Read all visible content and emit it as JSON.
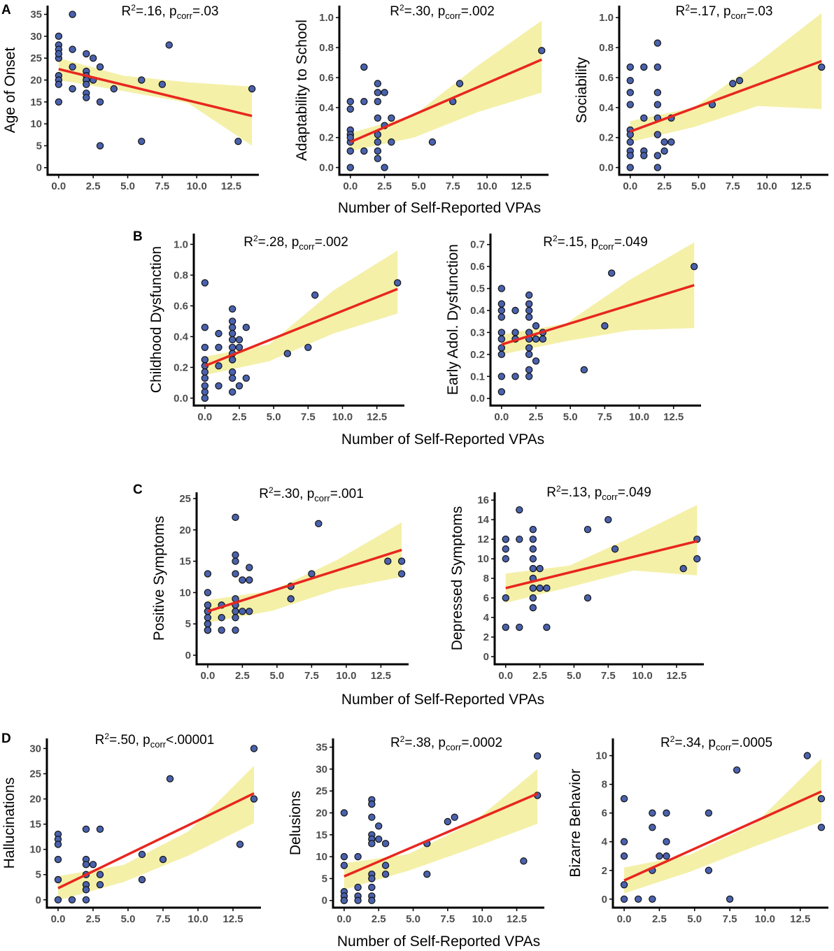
{
  "figure": {
    "shared_xlabel": "Number of Self-Reported VPAs",
    "panel_labels": [
      "A",
      "B",
      "C",
      "D"
    ]
  },
  "colors": {
    "point_fill": "#4a62ad",
    "point_stroke": "#111111",
    "fit_line": "#e8261f",
    "ci_band": "#f4f0a8",
    "axis": "#000000"
  },
  "chart_data": [
    {
      "panel": "A",
      "type": "scatter",
      "ylabel": "Age of Onset",
      "annotation": {
        "r2": "=.16, p",
        "p": "=.03"
      },
      "xlim": [
        -0.5,
        14.5
      ],
      "ylim": [
        -1,
        37
      ],
      "xticks": [
        0,
        2.5,
        5,
        7.5,
        10,
        12.5
      ],
      "yticks": [
        0,
        5,
        10,
        15,
        20,
        25,
        30,
        35
      ],
      "x": [
        0,
        0,
        0,
        0,
        0,
        0,
        0,
        0,
        0,
        1,
        1,
        1,
        1,
        2,
        2,
        2,
        2,
        2,
        2,
        2,
        2.5,
        2.5,
        3,
        3,
        3,
        4,
        6,
        6,
        7.5,
        8,
        13,
        14
      ],
      "y": [
        30,
        28,
        27,
        25,
        21,
        20,
        19,
        15,
        26,
        35,
        27,
        23,
        18,
        26,
        22,
        21,
        20,
        19,
        17,
        16,
        25,
        20,
        23,
        15,
        5,
        18,
        20,
        6,
        19,
        28,
        6,
        18
      ],
      "fit": {
        "x0": 0,
        "y0": 22.5,
        "x1": 14,
        "y1": 11.8
      },
      "ci": {
        "lo": [
          20.0,
          17.5,
          14.8,
          5.0
        ],
        "hi": [
          25.0,
          21.0,
          19.5,
          18.5
        ]
      }
    },
    {
      "panel": "A",
      "type": "scatter",
      "ylabel": "Adaptability to School",
      "annotation": {
        "r2": "=.30, p",
        "p": "=.002"
      },
      "xlim": [
        -0.5,
        14.5
      ],
      "ylim": [
        -0.03,
        1.08
      ],
      "xticks": [
        0,
        2.5,
        5,
        7.5,
        10,
        12.5
      ],
      "yticks": [
        0,
        0.2,
        0.4,
        0.6,
        0.8,
        1.0
      ],
      "x": [
        0,
        0,
        0,
        0,
        0,
        0,
        0,
        0,
        1,
        1,
        1,
        2,
        2,
        2,
        2,
        2,
        2,
        2,
        2,
        2.5,
        2.5,
        2.5,
        3,
        3,
        6,
        7.5,
        8,
        14
      ],
      "y": [
        0.44,
        0.39,
        0.25,
        0.22,
        0.17,
        0.11,
        0,
        0.2,
        0.67,
        0.44,
        0.11,
        0.56,
        0.5,
        0.44,
        0.33,
        0.22,
        0.17,
        0.11,
        0.06,
        0.5,
        0.28,
        0,
        0.33,
        0.17,
        0.17,
        0.44,
        0.56,
        0.78
      ],
      "fit": {
        "x0": 0,
        "y0": 0.17,
        "x1": 14,
        "y1": 0.72
      },
      "ci": {
        "lo": [
          0.11,
          0.2,
          0.37,
          0.5
        ],
        "hi": [
          0.23,
          0.35,
          0.68,
          0.98
        ]
      }
    },
    {
      "panel": "A",
      "type": "scatter",
      "ylabel": "Sociability",
      "annotation": {
        "r2": "=.17, p",
        "p": "=.03"
      },
      "xlim": [
        -0.5,
        14.5
      ],
      "ylim": [
        -0.03,
        1.08
      ],
      "xticks": [
        0,
        2.5,
        5,
        7.5,
        10,
        12.5
      ],
      "yticks": [
        0,
        0.2,
        0.4,
        0.6,
        0.8,
        1.0
      ],
      "x": [
        0,
        0,
        0,
        0,
        0,
        0,
        0,
        0,
        0,
        0,
        1,
        1,
        1,
        1,
        2,
        2,
        2,
        2,
        2,
        2,
        2,
        2,
        2.5,
        2.5,
        3,
        3,
        6,
        7.5,
        8,
        14
      ],
      "y": [
        0.67,
        0.58,
        0.5,
        0.42,
        0.25,
        0.22,
        0.17,
        0.11,
        0.08,
        0,
        0.67,
        0.33,
        0.11,
        0.08,
        0.83,
        0.67,
        0.5,
        0.42,
        0.33,
        0.22,
        0.08,
        0,
        0.17,
        0.11,
        0.33,
        0.17,
        0.42,
        0.56,
        0.58,
        0.67
      ],
      "fit": {
        "x0": 0,
        "y0": 0.24,
        "x1": 14,
        "y1": 0.71
      },
      "ci": {
        "lo": [
          0.17,
          0.27,
          0.41,
          0.39
        ],
        "hi": [
          0.31,
          0.4,
          0.7,
          1.03
        ]
      }
    },
    {
      "panel": "B",
      "type": "scatter",
      "ylabel": "Childhood Dysfunction",
      "annotation": {
        "r2": "=.28, p",
        "p": "=.002"
      },
      "xlim": [
        -0.5,
        14.5
      ],
      "ylim": [
        -0.03,
        1.07
      ],
      "xticks": [
        0,
        2.5,
        5,
        7.5,
        10,
        12.5
      ],
      "yticks": [
        0,
        0.2,
        0.4,
        0.6,
        0.8,
        1.0
      ],
      "x": [
        0,
        0,
        0,
        0,
        0,
        0,
        0,
        0,
        0,
        0,
        1,
        1,
        1,
        1,
        2,
        2,
        2,
        2,
        2,
        2,
        2,
        2,
        2,
        2,
        2,
        2.5,
        2.5,
        2.5,
        3,
        3,
        6,
        7.5,
        8,
        14
      ],
      "y": [
        0.75,
        0.46,
        0.33,
        0.25,
        0.21,
        0.17,
        0.13,
        0.08,
        0.04,
        0.0,
        0.42,
        0.33,
        0.21,
        0.08,
        0.58,
        0.5,
        0.46,
        0.42,
        0.38,
        0.33,
        0.29,
        0.25,
        0.17,
        0.13,
        0.04,
        0.38,
        0.33,
        0.08,
        0.46,
        0.13,
        0.29,
        0.33,
        0.67,
        0.75
      ],
      "fit": {
        "x0": 0,
        "y0": 0.21,
        "x1": 14,
        "y1": 0.71
      },
      "ci": {
        "lo": [
          0.15,
          0.24,
          0.42,
          0.55
        ],
        "hi": [
          0.27,
          0.35,
          0.7,
          0.96
        ]
      }
    },
    {
      "panel": "B",
      "type": "scatter",
      "ylabel": "Early Adol. Dysfunction",
      "annotation": {
        "r2": "=.15, p",
        "p": "=.049"
      },
      "xlim": [
        -0.5,
        14.5
      ],
      "ylim": [
        -0.02,
        0.75
      ],
      "xticks": [
        0,
        2.5,
        5,
        7.5,
        10,
        12.5
      ],
      "yticks": [
        0,
        0.1,
        0.2,
        0.3,
        0.4,
        0.5,
        0.6,
        0.7
      ],
      "x": [
        0,
        0,
        0,
        0,
        0,
        0,
        0,
        0,
        0,
        0,
        1,
        1,
        1,
        1,
        2,
        2,
        2,
        2,
        2,
        2,
        2,
        2,
        2,
        2,
        2.5,
        2.5,
        2.5,
        3,
        3,
        6,
        7.5,
        8,
        14
      ],
      "y": [
        0.5,
        0.43,
        0.4,
        0.37,
        0.3,
        0.27,
        0.23,
        0.2,
        0.1,
        0.03,
        0.4,
        0.3,
        0.27,
        0.1,
        0.47,
        0.43,
        0.4,
        0.37,
        0.3,
        0.27,
        0.23,
        0.2,
        0.13,
        0.1,
        0.33,
        0.27,
        0.17,
        0.3,
        0.27,
        0.13,
        0.33,
        0.57,
        0.6
      ],
      "fit": {
        "x0": 0,
        "y0": 0.245,
        "x1": 14,
        "y1": 0.515
      },
      "ci": {
        "lo": [
          0.2,
          0.26,
          0.31,
          0.32
        ],
        "hi": [
          0.29,
          0.34,
          0.54,
          0.71
        ]
      }
    },
    {
      "panel": "C",
      "type": "scatter",
      "ylabel": "Positive Symptoms",
      "annotation": {
        "r2": "=.30, p",
        "p": "=.001"
      },
      "xlim": [
        -0.5,
        14.5
      ],
      "ylim": [
        -1,
        26
      ],
      "xticks": [
        0,
        2.5,
        5,
        7.5,
        10,
        12.5
      ],
      "yticks": [
        0,
        5,
        10,
        15,
        20,
        25
      ],
      "x": [
        0,
        0,
        0,
        0,
        0,
        0,
        0,
        0,
        0,
        0,
        0,
        1,
        1,
        1,
        2,
        2,
        2,
        2,
        2,
        2,
        2,
        2,
        2,
        2.5,
        2.5,
        3,
        3,
        3,
        6,
        6,
        7.5,
        8,
        13,
        14,
        14
      ],
      "y": [
        13,
        10,
        8,
        7,
        6,
        5,
        5,
        4,
        4,
        4,
        7,
        8,
        6,
        4,
        22,
        16,
        15,
        13,
        9,
        8,
        7,
        6,
        4,
        12,
        7,
        14,
        12,
        7,
        11,
        9,
        13,
        21,
        15,
        15,
        13
      ],
      "fit": {
        "x0": 0,
        "y0": 7.0,
        "x1": 14,
        "y1": 16.8
      },
      "ci": {
        "lo": [
          5.2,
          7.1,
          10.5,
          12.5
        ],
        "hi": [
          8.8,
          10.3,
          15.2,
          21.2
        ]
      }
    },
    {
      "panel": "C",
      "type": "scatter",
      "ylabel": "Depressed Symptoms",
      "annotation": {
        "r2": "=.13, p",
        "p": "=.049"
      },
      "xlim": [
        -0.5,
        14.5
      ],
      "ylim": [
        -0.5,
        16.8
      ],
      "xticks": [
        0,
        2.5,
        5,
        7.5,
        10,
        12.5
      ],
      "yticks": [
        0,
        2,
        4,
        6,
        8,
        10,
        12,
        14,
        16
      ],
      "x": [
        0,
        0,
        0,
        0,
        0,
        0,
        1,
        1,
        1,
        2,
        2,
        2,
        2,
        2,
        2,
        2,
        2,
        2,
        2.5,
        2.5,
        3,
        3,
        6,
        6,
        7.5,
        8,
        13,
        14,
        14
      ],
      "y": [
        12,
        11,
        10,
        6,
        3,
        12,
        15,
        12,
        3,
        13,
        12,
        11,
        10,
        9,
        8,
        7,
        6,
        5,
        9,
        7,
        7,
        3,
        13,
        6,
        14,
        11,
        9,
        12,
        10
      ],
      "fit": {
        "x0": 0,
        "y0": 7.0,
        "x1": 14,
        "y1": 11.8
      },
      "ci": {
        "lo": [
          5.5,
          7.1,
          8.8,
          8.3
        ],
        "hi": [
          8.5,
          9.3,
          12.3,
          15.5
        ]
      }
    },
    {
      "panel": "D",
      "type": "scatter",
      "ylabel": "Hallucinations",
      "annotation": {
        "r2": "=.50, p",
        "p": "<.00001"
      },
      "xlim": [
        -0.5,
        14.5
      ],
      "ylim": [
        -1,
        32
      ],
      "xticks": [
        0,
        2.5,
        5,
        7.5,
        10,
        12.5
      ],
      "yticks": [
        0,
        5,
        10,
        15,
        20,
        25,
        30
      ],
      "x": [
        0,
        0,
        0,
        0,
        0,
        0,
        1,
        2,
        2,
        2,
        2,
        2,
        2,
        2,
        2.5,
        3,
        3,
        3,
        6,
        6,
        7.5,
        8,
        13,
        14,
        14
      ],
      "y": [
        13,
        12,
        11,
        8,
        4,
        0,
        0,
        14,
        8,
        7,
        5,
        3,
        2,
        0,
        7,
        14,
        5,
        3,
        9,
        4,
        8,
        24,
        11,
        30,
        20
      ],
      "fit": {
        "x0": 0,
        "y0": 2.3,
        "x1": 14,
        "y1": 21.1
      },
      "ci": {
        "lo": [
          -0.1,
          3.5,
          8.8,
          15.2
        ],
        "hi": [
          4.7,
          6.9,
          13.6,
          26.6
        ]
      }
    },
    {
      "panel": "D",
      "type": "scatter",
      "ylabel": "Delusions",
      "annotation": {
        "r2": "=.38, p",
        "p": "=.0002"
      },
      "xlim": [
        -0.5,
        14.5
      ],
      "ylim": [
        -1,
        37
      ],
      "xticks": [
        0,
        2.5,
        5,
        7.5,
        10,
        12.5
      ],
      "yticks": [
        0,
        5,
        10,
        15,
        20,
        25,
        30,
        35
      ],
      "x": [
        0,
        0,
        0,
        0,
        0,
        0,
        0,
        1,
        1,
        1,
        1,
        2,
        2,
        2,
        2,
        2,
        2,
        2,
        2,
        2,
        2,
        2,
        2.5,
        2.5,
        3,
        3,
        3,
        6,
        6,
        7.5,
        8,
        13,
        14,
        14
      ],
      "y": [
        20,
        10,
        8,
        2,
        1,
        0,
        0,
        10,
        3,
        1,
        0,
        23,
        22,
        19,
        15,
        14,
        13,
        6,
        5,
        3,
        1,
        0,
        14,
        17,
        8,
        6,
        13,
        13,
        6,
        18,
        19,
        9,
        33,
        24
      ],
      "fit": {
        "x0": 0,
        "y0": 5.5,
        "x1": 14,
        "y1": 24.4
      },
      "ci": {
        "lo": [
          2.5,
          6.8,
          12.0,
          17.5
        ],
        "hi": [
          8.5,
          10.6,
          17.8,
          30.0
        ]
      }
    },
    {
      "panel": "D",
      "type": "scatter",
      "ylabel": "Bizarre Behavior",
      "annotation": {
        "r2": "=.34, p",
        "p": "=.0005"
      },
      "xlim": [
        -0.5,
        14.5
      ],
      "ylim": [
        -0.4,
        11.2
      ],
      "xticks": [
        0,
        2.5,
        5,
        7.5,
        10,
        12.5
      ],
      "yticks": [
        0,
        2,
        4,
        6,
        8,
        10
      ],
      "x": [
        0,
        0,
        0,
        0,
        0,
        1,
        2,
        2,
        2,
        2,
        2.5,
        3,
        3,
        3,
        6,
        6,
        7.5,
        8,
        13,
        14,
        14
      ],
      "y": [
        7,
        4,
        3,
        1,
        0,
        0,
        6,
        5,
        2,
        0,
        3,
        6,
        4,
        3,
        6,
        2,
        0,
        9,
        10,
        7,
        5
      ],
      "fit": {
        "x0": 0,
        "y0": 1.3,
        "x1": 14,
        "y1": 7.5
      },
      "ci": {
        "lo": [
          0.4,
          1.9,
          3.7,
          5.4
        ],
        "hi": [
          2.2,
          3.1,
          5.3,
          9.8
        ]
      }
    }
  ]
}
